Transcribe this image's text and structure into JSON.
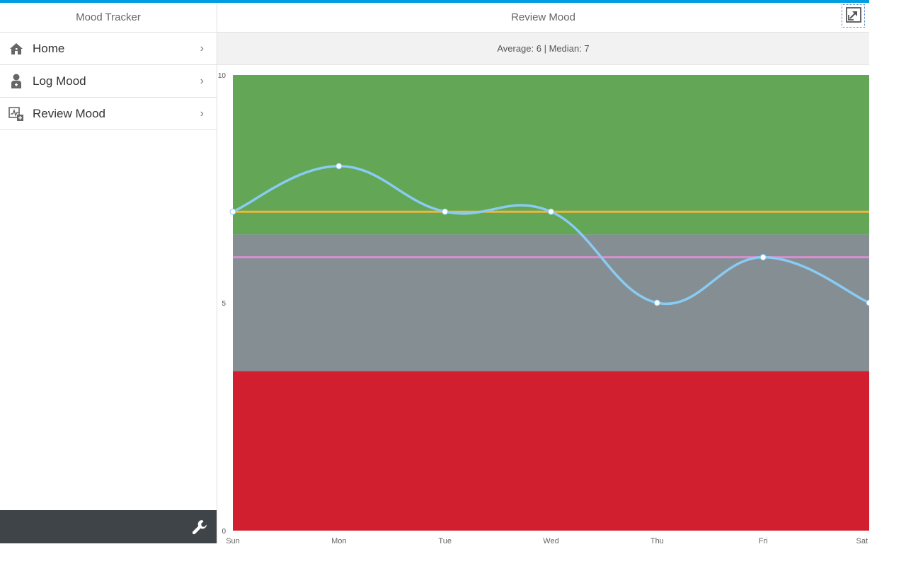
{
  "sidebar": {
    "title": "Mood Tracker",
    "items": [
      {
        "label": "Home",
        "icon": "home-icon"
      },
      {
        "label": "Log Mood",
        "icon": "person-icon"
      },
      {
        "label": "Review Mood",
        "icon": "chart-add-icon"
      }
    ],
    "footer_icon": "wrench-icon"
  },
  "main": {
    "title": "Review Mood",
    "expand_icon": "expand-icon",
    "stats": "Average: 6 | Median: 7"
  },
  "colors": {
    "accent": "#009de0",
    "band_good": "#62a656",
    "band_neutral": "#858e93",
    "band_bad": "#d11f2f",
    "mood_line": "#89cbf2",
    "median_line": "#f2b53b",
    "average_line": "#d88ed0"
  },
  "chart_data": {
    "type": "line",
    "categories": [
      "Sun",
      "Mon",
      "Tue",
      "Wed",
      "Thu",
      "Fri",
      "Sat"
    ],
    "values": [
      7,
      8,
      7,
      7,
      5,
      6,
      5
    ],
    "ylim": [
      0,
      10
    ],
    "yticks": [
      "0",
      "5",
      "10"
    ],
    "bands": [
      {
        "from": 0,
        "to": 3.5,
        "color": "#d11f2f"
      },
      {
        "from": 3.5,
        "to": 6.5,
        "color": "#858e93"
      },
      {
        "from": 6.5,
        "to": 10,
        "color": "#62a656"
      }
    ],
    "reference_lines": [
      {
        "value": 7,
        "color": "#f2b53b"
      },
      {
        "value": 6,
        "color": "#d88ed0"
      }
    ],
    "grid": false,
    "legend": "none"
  }
}
